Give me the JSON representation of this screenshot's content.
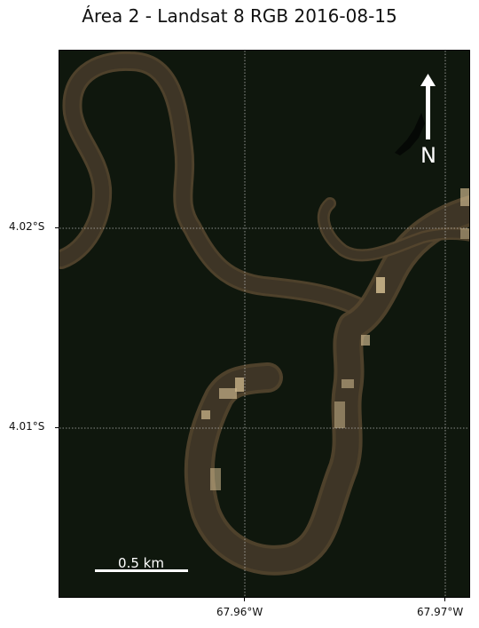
{
  "title": "Área 2 - Landsat 8 RGB 2016-08-15",
  "map": {
    "background_color": "#0f170d",
    "river_color": "#3e3526",
    "river_edge_color": "#55462f",
    "bright_color": "#c9b48a",
    "gridline_color": "#cfcfcf",
    "latitude_labels": [
      "4.02°S",
      "4.01°S"
    ],
    "longitude_labels": [
      "67.96°W",
      "67.97°W"
    ],
    "north_arrow": {
      "label": "N",
      "icon": "north-arrow-icon"
    },
    "scale_bar": {
      "label": "0.5 km"
    }
  }
}
